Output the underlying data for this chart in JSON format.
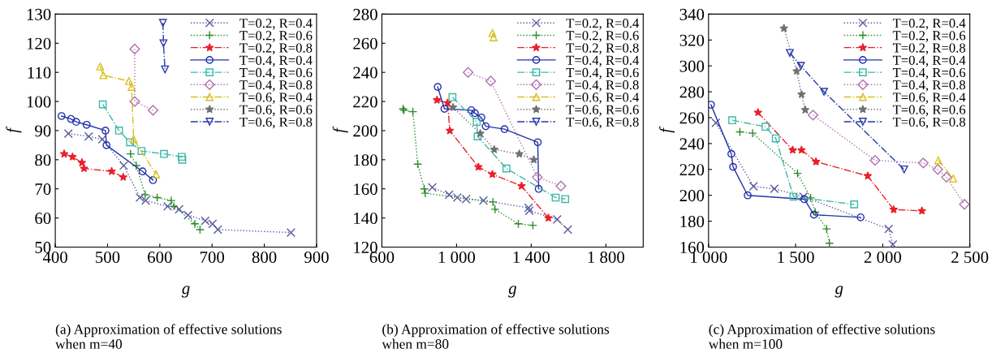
{
  "chart_data": [
    {
      "type": "line",
      "title": "(a) Approximation of effective solutions\nwhen m=40",
      "xlabel": "g",
      "ylabel": "f",
      "xlim": [
        400,
        900
      ],
      "xticks": [
        400,
        500,
        600,
        700,
        800,
        900
      ],
      "ylim": [
        50,
        130
      ],
      "yticks": [
        50,
        60,
        70,
        80,
        90,
        100,
        110,
        120,
        130
      ],
      "grid": false,
      "legend": "top right",
      "series": [
        {
          "name": "T=0.2, R=0.4",
          "color": "#5a5aa0",
          "marker": "cross",
          "line_style": "dotted",
          "x": [
            425,
            464,
            490,
            531,
            562,
            573,
            615,
            637,
            654,
            687,
            701,
            711,
            851
          ],
          "values": [
            89,
            88,
            87,
            78,
            67,
            66,
            64,
            63,
            61,
            59,
            58,
            56,
            55
          ]
        },
        {
          "name": "T=0.2, R=0.6",
          "color": "#2e8b2e",
          "marker": "plus",
          "line_style": "dotted",
          "x": [
            544,
            555,
            572,
            595,
            622,
            627,
            667,
            677
          ],
          "values": [
            82,
            78,
            68,
            67,
            66,
            64,
            58,
            56
          ]
        },
        {
          "name": "T=0.2, R=0.8",
          "color": "#e8202a",
          "marker": "star",
          "line_style": "dashed",
          "x": [
            417,
            433,
            451,
            455,
            508,
            530
          ],
          "values": [
            82,
            81,
            79,
            77,
            76,
            74
          ]
        },
        {
          "name": "T=0.4, R=0.4",
          "color": "#2233aa",
          "marker": "circle",
          "line_style": "solid",
          "x": [
            412,
            430,
            440,
            460,
            496,
            498,
            567,
            587
          ],
          "values": [
            95,
            94,
            93,
            92,
            90,
            85,
            76,
            73
          ]
        },
        {
          "name": "T=0.4, R=0.6",
          "color": "#3cb9a8",
          "marker": "square",
          "line_style": "dashed",
          "x": [
            491,
            522,
            543,
            565,
            608,
            642,
            643
          ],
          "values": [
            99,
            90,
            86,
            83,
            82,
            81,
            80
          ]
        },
        {
          "name": "T=0.4, R=0.8",
          "color": "#b070b0",
          "marker": "diamond",
          "line_style": "dotted",
          "x": [
            552,
            552,
            587
          ],
          "values": [
            118,
            100,
            97
          ]
        },
        {
          "name": "T=0.6, R=0.4",
          "color": "#d8c020",
          "marker": "triangle",
          "line_style": "dashed",
          "x": [
            486,
            492,
            541,
            546,
            550,
            593
          ],
          "values": [
            112,
            109,
            107,
            105,
            87,
            75
          ]
        },
        {
          "name": "T=0.6, R=0.6",
          "color": "#707070",
          "marker": "star",
          "line_style": "dotted"
        },
        {
          "name": "T=0.6, R=0.8",
          "color": "#2a3aa8",
          "marker": "triangle_down",
          "line_style": "dashed",
          "x": [
            606,
            607,
            610
          ],
          "values": [
            127,
            120,
            111
          ]
        }
      ]
    },
    {
      "type": "line",
      "title": "(b) Approximation of effective solutions\nwhen m=80",
      "xlabel": "g",
      "ylabel": "f",
      "xlim": [
        600,
        2000
      ],
      "xticks": [
        {
          "value": 600,
          "label": "600"
        },
        {
          "value": 1000,
          "label": "1 000"
        },
        {
          "value": 1400,
          "label": "1 400"
        },
        {
          "value": 1800,
          "label": "1 800"
        }
      ],
      "ylim": [
        120,
        280
      ],
      "yticks": [
        120,
        140,
        160,
        180,
        200,
        220,
        240,
        260,
        280
      ],
      "grid": false,
      "legend": "top right",
      "series": [
        {
          "name": "T=0.2, R=0.4",
          "color": "#5a5aa0",
          "marker": "cross",
          "line_style": "dotted",
          "x": [
            870,
            960,
            1004,
            1051,
            1144,
            1386,
            1390,
            1539,
            1596
          ],
          "values": [
            161,
            156,
            154,
            153,
            152,
            147,
            145,
            139,
            132
          ]
        },
        {
          "name": "T=0.2, R=0.6",
          "color": "#2e8b2e",
          "marker": "plus",
          "line_style": "dotted",
          "x": [
            713,
            718,
            766,
            792,
            827,
            832,
            1195,
            1206,
            1331,
            1409
          ],
          "values": [
            215,
            214,
            213,
            177,
            160,
            157,
            151,
            146,
            136,
            135
          ]
        },
        {
          "name": "T=0.2, R=0.8",
          "color": "#e8202a",
          "marker": "star",
          "line_style": "dashed",
          "x": [
            895,
            952,
            964,
            1117,
            1192,
            1348,
            1492
          ],
          "values": [
            221,
            219,
            200,
            175,
            170,
            162,
            140
          ]
        },
        {
          "name": "T=0.4, R=0.4",
          "color": "#2233aa",
          "marker": "circle",
          "line_style": "solid",
          "x": [
            899,
            935,
            1079,
            1098,
            1133,
            1156,
            1257,
            1435,
            1440
          ],
          "values": [
            230,
            215,
            214,
            212,
            209,
            203,
            201,
            192,
            160
          ]
        },
        {
          "name": "T=0.4, R=0.6",
          "color": "#3cb9a8",
          "marker": "square",
          "line_style": "dashed",
          "x": [
            978,
            1108,
            1113,
            1267,
            1531,
            1582
          ],
          "values": [
            223,
            206,
            196,
            174,
            154,
            153
          ]
        },
        {
          "name": "T=0.4, R=0.8",
          "color": "#b070b0",
          "marker": "diamond",
          "line_style": "dotted",
          "x": [
            1062,
            1183,
            1433,
            1559
          ],
          "values": [
            240,
            234,
            168,
            162
          ]
        },
        {
          "name": "T=0.6, R=0.4",
          "color": "#d8c020",
          "marker": "triangle",
          "line_style": "dashed",
          "x": [
            1192,
            1198
          ],
          "values": [
            267,
            264
          ]
        },
        {
          "name": "T=0.6, R=0.6",
          "color": "#707070",
          "marker": "star",
          "line_style": "dotted",
          "x": [
            981,
            1127,
            1202,
            1336,
            1414
          ],
          "values": [
            216,
            198,
            187,
            184,
            180
          ]
        },
        {
          "name": "T=0.6, R=0.8",
          "color": "#2a3aa8",
          "marker": "triangle_down",
          "line_style": "dashed"
        }
      ]
    },
    {
      "type": "line",
      "title": "(c) Approximation of effective solutions\nwhen m=100",
      "xlabel": "g",
      "ylabel": "f",
      "xlim": [
        1000,
        2500
      ],
      "xticks": [
        {
          "value": 1000,
          "label": "1 000"
        },
        {
          "value": 1500,
          "label": "1 500"
        },
        {
          "value": 2000,
          "label": "2 000"
        },
        {
          "value": 2500,
          "label": "2 500"
        }
      ],
      "ylim": [
        160,
        340
      ],
      "yticks": [
        160,
        180,
        200,
        220,
        240,
        260,
        280,
        300,
        320,
        340
      ],
      "grid": false,
      "legend": "top right",
      "series": [
        {
          "name": "T=0.2, R=0.4",
          "color": "#5a5aa0",
          "marker": "cross",
          "line_style": "dotted",
          "x": [
            1042,
            1258,
            1378,
            1545,
            2034,
            2058
          ],
          "values": [
            256,
            207,
            205,
            199,
            174,
            162
          ]
        },
        {
          "name": "T=0.2, R=0.6",
          "color": "#2e8b2e",
          "marker": "plus",
          "line_style": "dotted",
          "x": [
            1180,
            1253,
            1511,
            1586,
            1613,
            1678,
            1694
          ],
          "values": [
            249,
            248,
            217,
            198,
            187,
            174,
            163
          ]
        },
        {
          "name": "T=0.2, R=0.8",
          "color": "#e8202a",
          "marker": "star",
          "line_style": "dashed",
          "x": [
            1284,
            1483,
            1534,
            1617,
            1914,
            2063,
            2225
          ],
          "values": [
            264,
            235,
            235,
            226,
            215,
            189,
            188
          ]
        },
        {
          "name": "T=0.4, R=0.4",
          "color": "#2233aa",
          "marker": "circle",
          "line_style": "solid",
          "x": [
            1014,
            1131,
            1141,
            1225,
            1550,
            1605,
            1873
          ],
          "values": [
            270,
            232,
            222,
            200,
            197,
            185,
            183
          ]
        },
        {
          "name": "T=0.4, R=0.6",
          "color": "#3cb9a8",
          "marker": "square",
          "line_style": "dashed",
          "x": [
            1136,
            1327,
            1386,
            1488,
            1836
          ],
          "values": [
            258,
            253,
            244,
            199,
            193
          ]
        },
        {
          "name": "T=0.4, R=0.8",
          "color": "#b070b0",
          "marker": "diamond",
          "line_style": "dotted",
          "x": [
            1600,
            1956,
            2233,
            2316,
            2366,
            2469
          ],
          "values": [
            262,
            227,
            225,
            220,
            214,
            193
          ]
        },
        {
          "name": "T=0.6, R=0.4",
          "color": "#d8c020",
          "marker": "triangle",
          "line_style": "dashed",
          "x": [
            2319,
            2405
          ],
          "values": [
            227,
            213
          ]
        },
        {
          "name": "T=0.6, R=0.6",
          "color": "#707070",
          "marker": "star",
          "line_style": "dotted",
          "x": [
            1433,
            1506,
            1534,
            1555
          ],
          "values": [
            329,
            296,
            278,
            266
          ]
        },
        {
          "name": "T=0.6, R=0.8",
          "color": "#2a3aa8",
          "marker": "triangle_down",
          "line_style": "dashed",
          "x": [
            1467,
            1530,
            1663,
            2123
          ],
          "values": [
            310,
            300,
            280,
            220
          ]
        }
      ]
    }
  ]
}
